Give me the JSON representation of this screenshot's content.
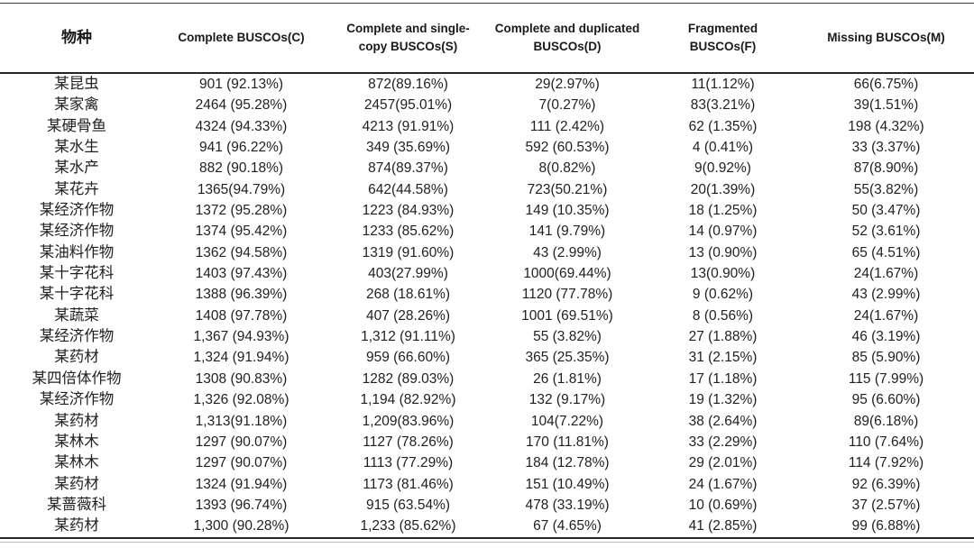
{
  "table": {
    "columns": [
      {
        "key": "species",
        "label": "物种"
      },
      {
        "key": "complete",
        "label": "Complete BUSCOs(C)"
      },
      {
        "key": "single_copy",
        "label": "Complete and single-copy BUSCOs(S)"
      },
      {
        "key": "duplicated",
        "label": "Complete and duplicated BUSCOs(D)"
      },
      {
        "key": "fragmented",
        "label": "Fragmented BUSCOs(F)"
      },
      {
        "key": "missing",
        "label": "Missing BUSCOs(M)"
      }
    ],
    "rows": [
      [
        "某昆虫",
        "901 (92.13%)",
        "872(89.16%)",
        "29(2.97%)",
        "11(1.12%)",
        "66(6.75%)"
      ],
      [
        "某家禽",
        "2464 (95.28%)",
        "2457(95.01%)",
        "7(0.27%)",
        "83(3.21%)",
        "39(1.51%)"
      ],
      [
        "某硬骨鱼",
        "4324 (94.33%)",
        "4213 (91.91%)",
        "111 (2.42%)",
        "62 (1.35%)",
        "198 (4.32%)"
      ],
      [
        "某水生",
        "941 (96.22%)",
        "349 (35.69%)",
        "592 (60.53%)",
        "4 (0.41%)",
        "33 (3.37%)"
      ],
      [
        "某水产",
        "882 (90.18%)",
        "874(89.37%)",
        "8(0.82%)",
        "9(0.92%)",
        "87(8.90%)"
      ],
      [
        "某花卉",
        "1365(94.79%)",
        "642(44.58%)",
        "723(50.21%)",
        "20(1.39%)",
        "55(3.82%)"
      ],
      [
        "某经济作物",
        "1372 (95.28%)",
        "1223 (84.93%)",
        "149 (10.35%)",
        "18 (1.25%)",
        "50 (3.47%)"
      ],
      [
        "某经济作物",
        "1374 (95.42%)",
        "1233 (85.62%)",
        "141 (9.79%)",
        "14 (0.97%)",
        "52 (3.61%)"
      ],
      [
        "某油料作物",
        "1362 (94.58%)",
        "1319 (91.60%)",
        "43 (2.99%)",
        "13 (0.90%)",
        "65 (4.51%)"
      ],
      [
        "某十字花科",
        "1403 (97.43%)",
        "403(27.99%)",
        "1000(69.44%)",
        "13(0.90%)",
        "24(1.67%)"
      ],
      [
        "某十字花科",
        "1388 (96.39%)",
        "268 (18.61%)",
        "1120 (77.78%)",
        "9 (0.62%)",
        "43 (2.99%)"
      ],
      [
        "某蔬菜",
        "1408 (97.78%)",
        "407 (28.26%)",
        "1001 (69.51%)",
        "8 (0.56%)",
        "24(1.67%)"
      ],
      [
        "某经济作物",
        "1,367 (94.93%)",
        "1,312 (91.11%)",
        "55 (3.82%)",
        "27 (1.88%)",
        "46 (3.19%)"
      ],
      [
        "某药材",
        "1,324 (91.94%)",
        "959 (66.60%)",
        "365 (25.35%)",
        "31 (2.15%)",
        "85 (5.90%)"
      ],
      [
        "某四倍体作物",
        "1308 (90.83%)",
        "1282 (89.03%)",
        "26 (1.81%)",
        "17 (1.18%)",
        "115 (7.99%)"
      ],
      [
        "某经济作物",
        "1,326 (92.08%)",
        "1,194 (82.92%)",
        "132 (9.17%)",
        "19 (1.32%)",
        "95 (6.60%)"
      ],
      [
        "某药材",
        "1,313(91.18%)",
        "1,209(83.96%)",
        "104(7.22%)",
        "38 (2.64%)",
        "89(6.18%)"
      ],
      [
        "某林木",
        "1297 (90.07%)",
        "1127 (78.26%)",
        "170 (11.81%)",
        "33 (2.29%)",
        "110 (7.64%)"
      ],
      [
        "某林木",
        "1297 (90.07%)",
        "1113 (77.29%)",
        "184 (12.78%)",
        "29 (2.01%)",
        "114 (7.92%)"
      ],
      [
        "某药材",
        "1324 (91.94%)",
        "1173 (81.46%)",
        "151 (10.49%)",
        "24 (1.67%)",
        "92 (6.39%)"
      ],
      [
        "某蔷薇科",
        "1393 (96.74%)",
        "915 (63.54%)",
        "478 (33.19%)",
        "10 (0.69%)",
        "37 (2.57%)"
      ],
      [
        "某药材",
        "1,300 (90.28%)",
        "1,233 (85.62%)",
        "67 (4.65%)",
        "41 (2.85%)",
        "99 (6.88%)"
      ]
    ]
  },
  "colors": {
    "text": "#1f1f1f",
    "border_dark": "#262626",
    "border_light": "#bcbcbc",
    "background": "#ffffff"
  }
}
